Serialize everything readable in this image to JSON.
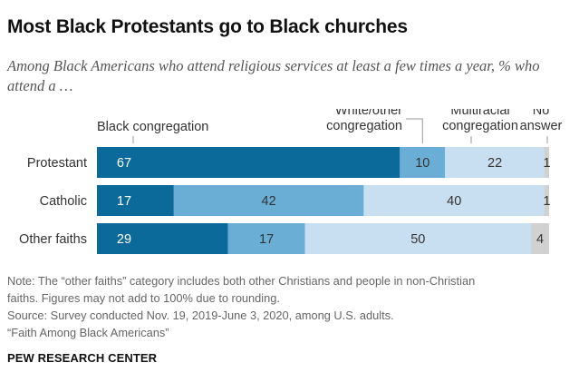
{
  "title": "Most Black Protestants go to Black churches",
  "subtitle": "Among Black Americans who attend religious services at least a few times a year, % who attend a …",
  "chart_data": {
    "type": "bar",
    "orientation": "horizontal",
    "stacked": true,
    "categories": [
      "Protestant",
      "Catholic",
      "Other faiths"
    ],
    "series": [
      {
        "name": "Black congregation",
        "values": [
          67,
          17,
          29
        ],
        "color": "#0b6a99"
      },
      {
        "name": "White/other congregation",
        "values": [
          10,
          42,
          17
        ],
        "color": "#6aaed6"
      },
      {
        "name": "Multiracial congregation",
        "values": [
          22,
          40,
          50
        ],
        "color": "#c7dff0"
      },
      {
        "name": "No answer",
        "values": [
          1,
          1,
          4
        ],
        "color": "#d1d1d1"
      }
    ],
    "legend_lines": [
      [
        "Black congregation"
      ],
      [
        "White/other",
        "congregation"
      ],
      [
        "Multiracial",
        "congregation"
      ],
      [
        "No",
        "answer"
      ]
    ],
    "xlim": [
      0,
      100
    ]
  },
  "notes": [
    "Note: The “other faiths” category includes both other Christians and people in non-Christian",
    "faiths. Figures may not add to 100% due to rounding.",
    "Source: Survey conducted Nov. 19, 2019-June 3, 2020, among U.S. adults.",
    "“Faith Among Black Americans”"
  ],
  "footer": "PEW RESEARCH CENTER"
}
